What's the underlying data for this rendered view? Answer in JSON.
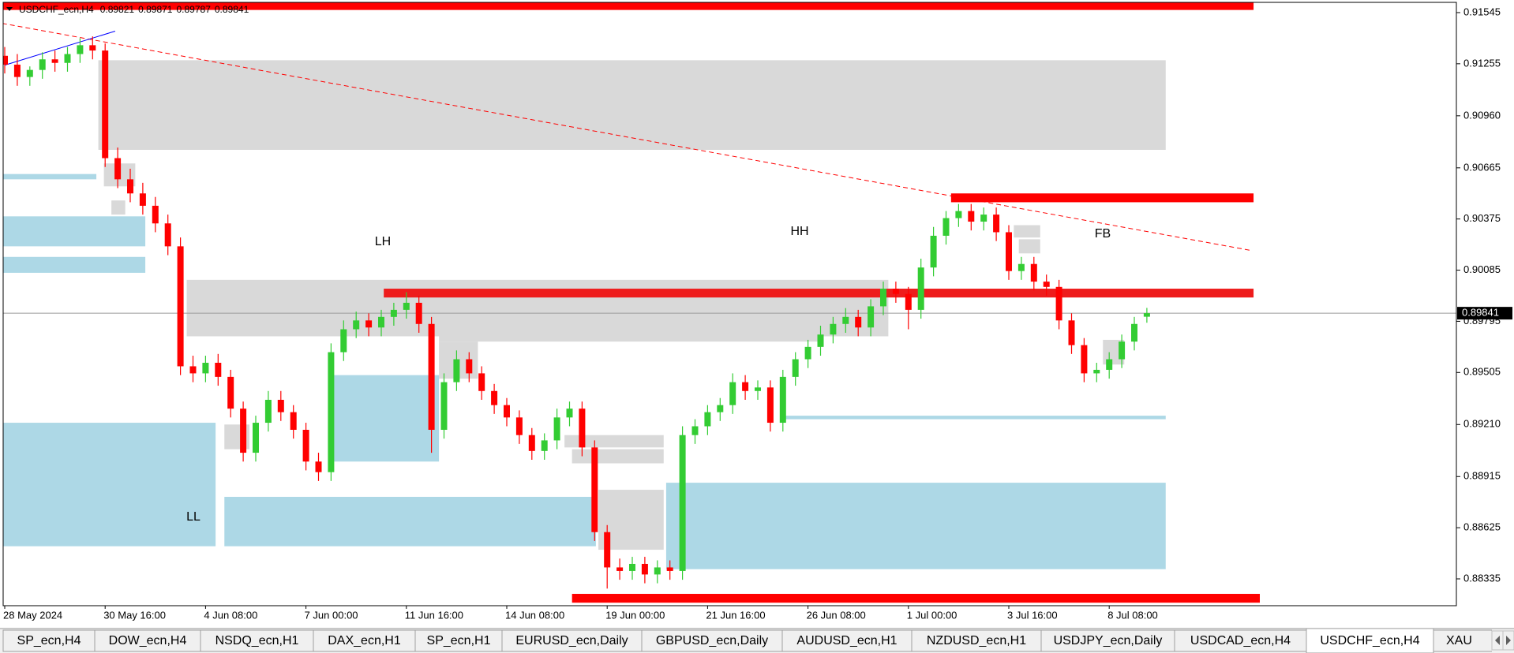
{
  "chart_data": {
    "type": "candlestick",
    "symbol": "USDCHF_ecn,H4",
    "categories": [
      "28 May 2024",
      null,
      null,
      null,
      null,
      null,
      null,
      null,
      "30 May 16:00",
      null,
      null,
      null,
      null,
      null,
      null,
      null,
      "4 Jun 08:00",
      null,
      null,
      null,
      null,
      null,
      null,
      null,
      "7 Jun 00:00",
      null,
      null,
      null,
      null,
      null,
      null,
      null,
      "11 Jun 16:00",
      null,
      null,
      null,
      null,
      null,
      null,
      null,
      "14 Jun 08:00",
      null,
      null,
      null,
      null,
      null,
      null,
      null,
      "19 Jun 00:00",
      null,
      null,
      null,
      null,
      null,
      null,
      null,
      "21 Jun 16:00",
      null,
      null,
      null,
      null,
      null,
      null,
      null,
      "26 Jun 08:00",
      null,
      null,
      null,
      null,
      null,
      null,
      null,
      "1 Jul 00:00",
      null,
      null,
      null,
      null,
      null,
      null,
      null,
      "3 Jul 16:00",
      null,
      null,
      null,
      null,
      null,
      null,
      null,
      "8 Jul 08:00",
      null,
      null,
      null
    ],
    "open": [
      0.913,
      0.9125,
      0.9118,
      0.9122,
      0.9128,
      0.9126,
      0.9131,
      0.9136,
      0.9133,
      0.9072,
      0.906,
      0.9052,
      0.9045,
      0.9035,
      0.9022,
      0.8954,
      0.895,
      0.8956,
      0.8948,
      0.893,
      0.8905,
      0.8922,
      0.8935,
      0.8928,
      0.8918,
      0.89,
      0.8894,
      0.8962,
      0.8975,
      0.898,
      0.8976,
      0.8982,
      0.8986,
      0.899,
      0.8978,
      0.8918,
      0.8945,
      0.8958,
      0.895,
      0.894,
      0.8932,
      0.8925,
      0.8915,
      0.8906,
      0.8912,
      0.8925,
      0.893,
      0.8908,
      0.886,
      0.884,
      0.8838,
      0.8842,
      0.8836,
      0.884,
      0.8838,
      0.8915,
      0.892,
      0.8928,
      0.8932,
      0.8945,
      0.894,
      0.8942,
      0.8922,
      0.8948,
      0.8958,
      0.8965,
      0.8972,
      0.8978,
      0.8982,
      0.8976,
      0.8988,
      0.8998,
      0.8995,
      0.8986,
      0.901,
      0.9028,
      0.9038,
      0.9042,
      0.9036,
      0.904,
      0.903,
      0.9008,
      0.9012,
      0.9002,
      0.8999,
      0.898,
      0.8966,
      0.895,
      0.8952,
      0.8958,
      0.8968,
      0.89821
    ],
    "high": [
      0.9135,
      0.9131,
      0.9124,
      0.9132,
      0.9133,
      0.9135,
      0.914,
      0.9141,
      0.9137,
      0.9078,
      0.9066,
      0.9058,
      0.905,
      0.904,
      0.9027,
      0.896,
      0.896,
      0.8961,
      0.8952,
      0.8934,
      0.8926,
      0.894,
      0.894,
      0.8932,
      0.8922,
      0.8905,
      0.8967,
      0.898,
      0.8985,
      0.8984,
      0.8986,
      0.899,
      0.8996,
      0.8994,
      0.8982,
      0.895,
      0.8963,
      0.8962,
      0.8954,
      0.8944,
      0.8936,
      0.8929,
      0.8919,
      0.8916,
      0.893,
      0.8934,
      0.8934,
      0.8912,
      0.8864,
      0.8845,
      0.8846,
      0.8846,
      0.8844,
      0.8844,
      0.892,
      0.8924,
      0.8932,
      0.8936,
      0.895,
      0.8949,
      0.8946,
      0.8946,
      0.8952,
      0.8962,
      0.8969,
      0.8977,
      0.8982,
      0.8987,
      0.8986,
      0.8992,
      0.9002,
      0.9002,
      0.8999,
      0.9015,
      0.9033,
      0.9042,
      0.9046,
      0.9046,
      0.9044,
      0.9044,
      0.9034,
      0.9016,
      0.9016,
      0.9006,
      0.9003,
      0.8984,
      0.897,
      0.8956,
      0.8962,
      0.8972,
      0.8982,
      0.89871
    ],
    "low": [
      0.912,
      0.9113,
      0.9113,
      0.9117,
      0.9121,
      0.9121,
      0.9126,
      0.9128,
      0.9067,
      0.9055,
      0.9047,
      0.904,
      0.903,
      0.9017,
      0.8949,
      0.8945,
      0.8945,
      0.8943,
      0.8925,
      0.89,
      0.89,
      0.8917,
      0.8923,
      0.8913,
      0.8895,
      0.8889,
      0.8889,
      0.8957,
      0.897,
      0.8971,
      0.8971,
      0.8977,
      0.8981,
      0.8973,
      0.8905,
      0.8913,
      0.894,
      0.8945,
      0.8935,
      0.8927,
      0.892,
      0.891,
      0.8901,
      0.8901,
      0.8907,
      0.892,
      0.8903,
      0.8855,
      0.8828,
      0.8833,
      0.8833,
      0.8831,
      0.8831,
      0.8833,
      0.8833,
      0.891,
      0.8915,
      0.8923,
      0.8927,
      0.8935,
      0.8935,
      0.8917,
      0.8917,
      0.8943,
      0.8953,
      0.896,
      0.8967,
      0.8973,
      0.8971,
      0.8971,
      0.8983,
      0.899,
      0.8975,
      0.8981,
      0.9005,
      0.9023,
      0.9033,
      0.9031,
      0.9031,
      0.9025,
      0.9003,
      0.9003,
      0.8997,
      0.8994,
      0.8975,
      0.8961,
      0.8945,
      0.8945,
      0.8947,
      0.8953,
      0.8963,
      0.89787
    ],
    "close": [
      0.9125,
      0.9118,
      0.9122,
      0.9128,
      0.9126,
      0.9131,
      0.9136,
      0.9133,
      0.9072,
      0.906,
      0.9052,
      0.9045,
      0.9035,
      0.9022,
      0.8954,
      0.895,
      0.8956,
      0.8948,
      0.893,
      0.8905,
      0.8922,
      0.8935,
      0.8928,
      0.8918,
      0.89,
      0.8894,
      0.8962,
      0.8975,
      0.898,
      0.8976,
      0.8982,
      0.8986,
      0.899,
      0.8978,
      0.8918,
      0.8945,
      0.8958,
      0.895,
      0.894,
      0.8932,
      0.8925,
      0.8915,
      0.8906,
      0.8912,
      0.8925,
      0.893,
      0.8908,
      0.886,
      0.884,
      0.8838,
      0.8842,
      0.8836,
      0.884,
      0.8838,
      0.8915,
      0.892,
      0.8928,
      0.8932,
      0.8945,
      0.894,
      0.8942,
      0.8922,
      0.8948,
      0.8958,
      0.8965,
      0.8972,
      0.8978,
      0.8982,
      0.8976,
      0.8988,
      0.8998,
      0.8995,
      0.8986,
      0.901,
      0.9028,
      0.9038,
      0.9042,
      0.9036,
      0.904,
      0.903,
      0.9008,
      0.9012,
      0.9002,
      0.8999,
      0.898,
      0.8966,
      0.895,
      0.8952,
      0.8958,
      0.8968,
      0.8978,
      0.89841
    ],
    "up_color": "#33cc33",
    "down_color": "#ff0000",
    "ylim": [
      0.88183,
      0.91603
    ],
    "yticks": [
      0.91545,
      0.91255,
      {
        "value": 0.9096,
        "label": "0.90960"
      },
      0.90665,
      0.90375,
      0.90085,
      0.89795,
      0.89505,
      {
        "value": 0.8921,
        "label": "0.89210"
      },
      0.88915,
      0.88625,
      0.88335
    ],
    "zones": [
      {
        "x0": 7.46,
        "x1": 92.5,
        "y0": 0.90767,
        "y1": 0.91275,
        "color": "#d9d9d9"
      },
      {
        "x0": 7.9,
        "x1": 10.4,
        "y0": 0.9056,
        "y1": 0.9069,
        "color": "#d9d9d9"
      },
      {
        "x0": 8.5,
        "x1": 9.6,
        "y0": 0.904,
        "y1": 0.9048,
        "color": "#d9d9d9"
      },
      {
        "x0": 14.5,
        "x1": 70.4,
        "y0": 0.8971,
        "y1": 0.9003,
        "color": "#d9d9d9"
      },
      {
        "x0": 34.6,
        "x1": 64.8,
        "y0": 0.8968,
        "y1": 0.8973,
        "color": "#d9d9d9"
      },
      {
        "x0": 34.6,
        "x1": 37.7,
        "y0": 0.8947,
        "y1": 0.8968,
        "color": "#d9d9d9"
      },
      {
        "x0": 17.5,
        "x1": 19.5,
        "y0": 0.8907,
        "y1": 0.8921,
        "color": "#d9d9d9"
      },
      {
        "x0": 44.6,
        "x1": 52.5,
        "y0": 0.8908,
        "y1": 0.8915,
        "color": "#d9d9d9"
      },
      {
        "x0": 45.2,
        "x1": 52.5,
        "y0": 0.8899,
        "y1": 0.8907,
        "color": "#d9d9d9"
      },
      {
        "x0": 47.3,
        "x1": 52.5,
        "y0": 0.885,
        "y1": 0.8884,
        "color": "#d9d9d9"
      },
      {
        "x0": 80.4,
        "x1": 82.5,
        "y0": 0.9027,
        "y1": 0.9034,
        "color": "#d9d9d9"
      },
      {
        "x0": 80.8,
        "x1": 82.5,
        "y0": 0.9018,
        "y1": 0.9026,
        "color": "#d9d9d9"
      },
      {
        "x0": 87.5,
        "x1": 89.2,
        "y0": 0.8955,
        "y1": 0.8969,
        "color": "#d9d9d9"
      },
      {
        "x0": -0.2,
        "x1": 7.3,
        "y0": 0.906,
        "y1": 0.9063,
        "color": "#add8e6"
      },
      {
        "x0": -0.2,
        "x1": 11.2,
        "y0": 0.9022,
        "y1": 0.9039,
        "color": "#add8e6"
      },
      {
        "x0": -0.2,
        "x1": 11.2,
        "y0": 0.9007,
        "y1": 0.9016,
        "color": "#add8e6"
      },
      {
        "x0": -0.2,
        "x1": 16.8,
        "y0": 0.8852,
        "y1": 0.8922,
        "color": "#add8e6"
      },
      {
        "x0": 17.5,
        "x1": 47.1,
        "y0": 0.8852,
        "y1": 0.888,
        "color": "#add8e6"
      },
      {
        "x0": 26.2,
        "x1": 34.6,
        "y0": 0.89,
        "y1": 0.8949,
        "color": "#add8e6"
      },
      {
        "x0": 52.7,
        "x1": 92.5,
        "y0": 0.8839,
        "y1": 0.8888,
        "color": "#add8e6"
      },
      {
        "x0": 61.8,
        "x1": 92.5,
        "y0": 0.8924,
        "y1": 0.8926,
        "color": "#add8e6"
      },
      {
        "x0": -0.2,
        "x1": 99.5,
        "y0": 0.9156,
        "y1": 0.9161,
        "color": "#ff0000"
      },
      {
        "x0": 75.4,
        "x1": 99.5,
        "y0": 0.9047,
        "y1": 0.9052,
        "color": "#ff0000"
      },
      {
        "x0": 30.2,
        "x1": 99.5,
        "y0": 0.8993,
        "y1": 0.8998,
        "color": "#ee1c1c"
      },
      {
        "x0": 45.2,
        "x1": 100,
        "y0": 0.882,
        "y1": 0.8825,
        "color": "#ff0000"
      }
    ],
    "trendlines": [
      {
        "x": [
          -0.2,
          99.2
        ],
        "y": [
          0.91484,
          0.90198
        ],
        "color": "#ff0000",
        "dashed": true
      },
      {
        "x": [
          0,
          8.8
        ],
        "y": [
          0.91247,
          0.9144
        ],
        "color": "#0000ff",
        "dashed": false
      }
    ],
    "annotations": [
      "LH",
      "HH",
      "FB",
      "LL"
    ],
    "price_line_color": "#9a9a9a"
  },
  "tabs": [
    {
      "label": "SP_ecn,H4",
      "active": false
    },
    {
      "label": "DOW_ecn,H4",
      "active": false
    },
    {
      "label": "NSDQ_ecn,H1",
      "active": false
    },
    {
      "label": "DAX_ecn,H1",
      "active": false
    },
    {
      "label": "SP_ecn,H1",
      "active": false
    },
    {
      "label": "EURUSD_ecn,Daily",
      "active": false
    },
    {
      "label": "GBPUSD_ecn,Daily",
      "active": false
    },
    {
      "label": "AUDUSD_ecn,H1",
      "active": false
    },
    {
      "label": "NZDUSD_ecn,H1",
      "active": false
    },
    {
      "label": "USDJPY_ecn,Daily",
      "active": false
    },
    {
      "label": "USDCAD_ecn,H4",
      "active": false
    },
    {
      "label": "USDCHF_ecn,H4",
      "active": true
    },
    {
      "label": "XAU",
      "active": false
    }
  ]
}
